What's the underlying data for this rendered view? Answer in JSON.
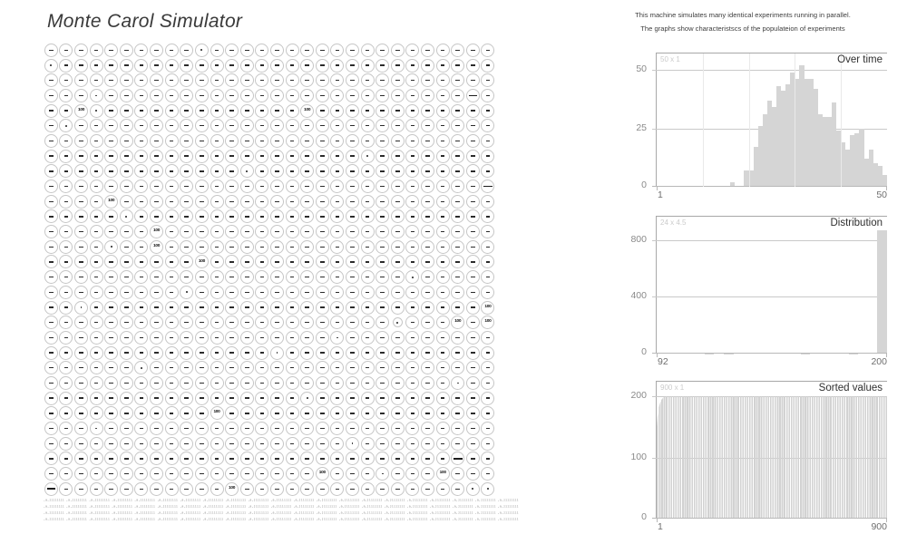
{
  "title": "Monte Carol Simulator",
  "caption": {
    "line1": "This machine simulates many identical experiments running in parallel.",
    "line2": "The graphs show characteristscs of the populateion of experiments"
  },
  "colors": {
    "bar_fill": "#d5d5d5",
    "axis": "#a8a8a8",
    "grid_line": "#c9c9c9",
    "circle_border": "#c6c6c6",
    "mark": "#2b2b2b",
    "size_label": "#cbcbcb",
    "chart_title": "#2f2f2f"
  },
  "grid": {
    "rows": 30,
    "cols": 30,
    "default_mark": "dash",
    "hundred_label": "100",
    "hundreds": [
      [
        4,
        2
      ],
      [
        4,
        17
      ],
      [
        10,
        4
      ],
      [
        12,
        7
      ],
      [
        13,
        7
      ],
      [
        14,
        10
      ],
      [
        17,
        29
      ],
      [
        18,
        27
      ],
      [
        18,
        29
      ],
      [
        24,
        11
      ],
      [
        28,
        18
      ],
      [
        28,
        26
      ],
      [
        29,
        12
      ]
    ],
    "long_dashes": [
      [
        3,
        28
      ],
      [
        9,
        29
      ],
      [
        27,
        27
      ],
      [
        29,
        0
      ]
    ],
    "dots": [
      [
        0,
        10
      ],
      [
        1,
        0
      ],
      [
        3,
        3
      ],
      [
        4,
        3
      ],
      [
        5,
        1
      ],
      [
        7,
        21
      ],
      [
        8,
        13
      ],
      [
        11,
        5
      ],
      [
        13,
        4
      ],
      [
        15,
        24
      ],
      [
        16,
        9
      ],
      [
        17,
        2
      ],
      [
        18,
        23
      ],
      [
        19,
        19
      ],
      [
        20,
        15
      ],
      [
        21,
        6
      ],
      [
        22,
        27
      ],
      [
        23,
        17
      ],
      [
        25,
        3
      ],
      [
        26,
        20
      ],
      [
        28,
        22
      ],
      [
        29,
        28
      ],
      [
        29,
        29
      ]
    ],
    "small_circles": [
      [
        18,
        23
      ]
    ]
  },
  "ticker_tape": {
    "unit": ",a,jiiiiiii ",
    "repeats": 21,
    "lines": 4
  },
  "chart_data": [
    {
      "type": "bar",
      "title": "Over time",
      "size_label": "50 x 1",
      "x_min_label": "1",
      "x_max_label": "50",
      "xlim": [
        1,
        50
      ],
      "ylim": [
        0,
        57
      ],
      "y_ticks": [
        0,
        25,
        50
      ],
      "v_grid_percent": [
        20,
        40,
        60,
        80
      ],
      "values": [
        0,
        0,
        0,
        0,
        0,
        0,
        0,
        0,
        0,
        0,
        0,
        0,
        0,
        0,
        0,
        0,
        2,
        0,
        0,
        7,
        7,
        17,
        26,
        31,
        37,
        34,
        43,
        41,
        44,
        49,
        46,
        52,
        46,
        46,
        42,
        31,
        30,
        30,
        36,
        24,
        19,
        16,
        22,
        23,
        25,
        12,
        16,
        10,
        9,
        5
      ]
    },
    {
      "type": "bar",
      "title": "Distribution",
      "size_label": "24 x 4.5",
      "x_min_label": "92",
      "x_max_label": "200",
      "xlim": [
        92,
        200
      ],
      "ylim": [
        0,
        966
      ],
      "y_ticks": [
        0,
        400,
        800
      ],
      "values": [
        0,
        0,
        0,
        0,
        0,
        3,
        5,
        3,
        0,
        0,
        0,
        0,
        0,
        4,
        5,
        3,
        0,
        0,
        0,
        4,
        3,
        0,
        0,
        870
      ]
    },
    {
      "type": "area-sorted",
      "title": "Sorted values",
      "size_label": "900 x 1",
      "x_min_label": "1",
      "x_max_label": "900",
      "xlim": [
        1,
        900
      ],
      "ylim": [
        0,
        224
      ],
      "y_ticks": [
        0,
        100,
        200
      ],
      "count": 900,
      "flat_value": 200,
      "head_values": [
        150,
        156,
        161,
        165,
        169,
        172,
        175,
        178,
        180,
        182,
        184,
        186,
        187,
        189,
        190,
        191,
        192,
        193,
        194,
        195,
        195,
        196,
        196,
        197,
        197,
        198,
        198,
        198,
        199,
        199,
        199,
        199,
        200,
        200,
        200,
        200,
        200,
        200,
        200,
        200
      ]
    }
  ]
}
